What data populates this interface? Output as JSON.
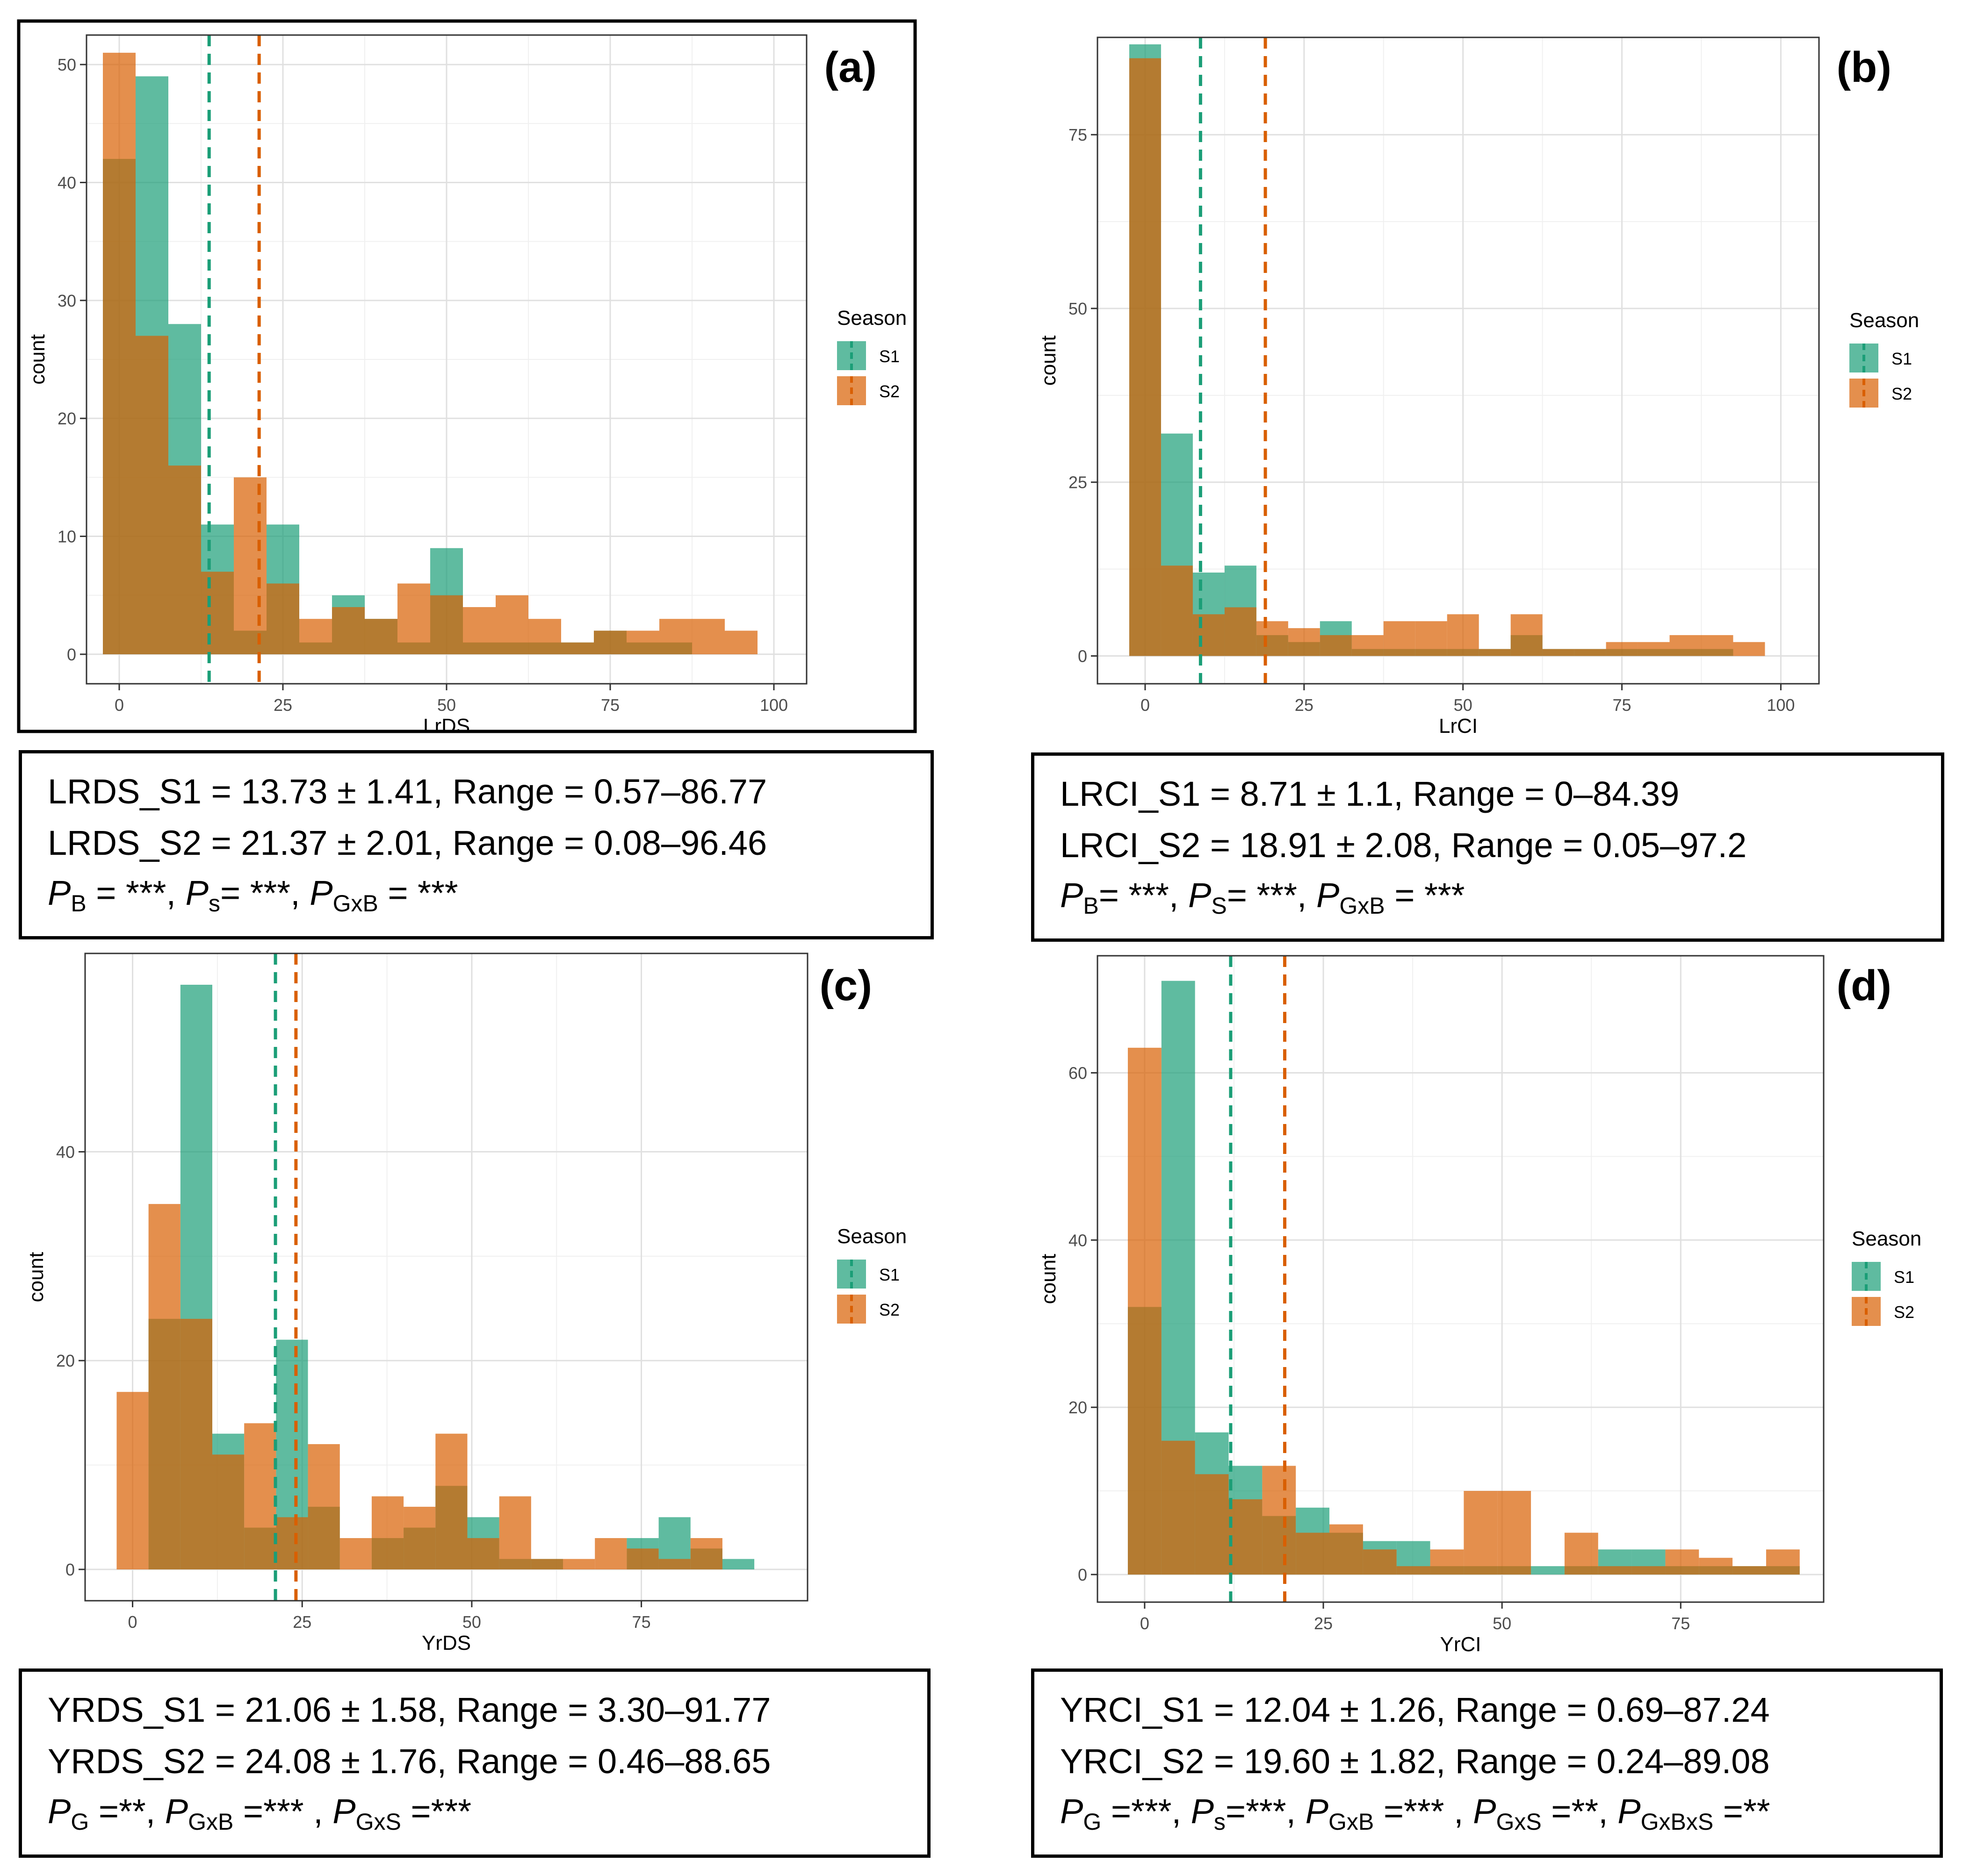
{
  "chart_data": [
    {
      "type": "bar",
      "panel_label": "(a)",
      "xlabel": "LrDS",
      "ylabel": "count",
      "xlim": [
        -5,
        105
      ],
      "ylim": [
        -2.5,
        52.5
      ],
      "xticks": [
        0,
        25,
        50,
        75,
        100
      ],
      "yticks": [
        0,
        10,
        20,
        30,
        40,
        50
      ],
      "bin_width": 5,
      "bin_starts": [
        -2.5,
        2.5,
        7.5,
        12.5,
        17.5,
        22.5,
        27.5,
        32.5,
        37.5,
        42.5,
        47.5,
        52.5,
        57.5,
        62.5,
        67.5,
        72.5,
        77.5,
        82.5,
        87.5,
        92.5
      ],
      "legend": {
        "title": "Season",
        "position": "right"
      },
      "series": [
        {
          "name": "S1",
          "color": "#1b9e77",
          "values": [
            42,
            49,
            28,
            11,
            2,
            11,
            1,
            5,
            3,
            1,
            9,
            1,
            1,
            1,
            1,
            2,
            1,
            1,
            0,
            0
          ],
          "mean": 13.73
        },
        {
          "name": "S2",
          "color": "#d95f02",
          "values": [
            51,
            27,
            16,
            7,
            15,
            6,
            3,
            4,
            3,
            6,
            5,
            4,
            5,
            3,
            1,
            2,
            2,
            3,
            3,
            2
          ],
          "mean": 21.37
        }
      ]
    },
    {
      "type": "bar",
      "panel_label": "(b)",
      "xlabel": "LrCI",
      "ylabel": "count",
      "xlim": [
        -7.5,
        106
      ],
      "ylim": [
        -4,
        89
      ],
      "xticks": [
        0,
        25,
        50,
        75,
        100
      ],
      "yticks": [
        0,
        25,
        50,
        75
      ],
      "bin_width": 5,
      "bin_starts": [
        -2.5,
        2.5,
        7.5,
        12.5,
        17.5,
        22.5,
        27.5,
        32.5,
        37.5,
        42.5,
        47.5,
        52.5,
        57.5,
        62.5,
        67.5,
        72.5,
        77.5,
        82.5,
        87.5,
        92.5
      ],
      "legend": {
        "title": "Season",
        "position": "right"
      },
      "series": [
        {
          "name": "S1",
          "color": "#1b9e77",
          "values": [
            88,
            32,
            12,
            13,
            3,
            2,
            5,
            1,
            1,
            1,
            1,
            1,
            3,
            1,
            1,
            1,
            1,
            1,
            1,
            0
          ],
          "mean": 8.71
        },
        {
          "name": "S2",
          "color": "#d95f02",
          "values": [
            86,
            13,
            6,
            7,
            5,
            4,
            3,
            3,
            5,
            5,
            6,
            1,
            6,
            1,
            1,
            2,
            2,
            3,
            3,
            2
          ],
          "mean": 18.91
        }
      ]
    },
    {
      "type": "bar",
      "panel_label": "(c)",
      "xlabel": "YrDS",
      "ylabel": "count",
      "xlim": [
        -7,
        99.5
      ],
      "ylim": [
        -3,
        59
      ],
      "xticks": [
        0,
        25,
        50,
        75
      ],
      "yticks": [
        0,
        20,
        40
      ],
      "bin_width": 4.7,
      "bin_starts": [
        -2.35,
        2.35,
        7.05,
        11.75,
        16.45,
        21.15,
        25.85,
        30.55,
        35.25,
        39.95,
        44.65,
        49.35,
        54.05,
        58.75,
        63.45,
        68.15,
        72.85,
        77.55,
        82.25,
        86.95
      ],
      "legend": {
        "title": "Season",
        "position": "right"
      },
      "series": [
        {
          "name": "S1",
          "color": "#1b9e77",
          "values": [
            0,
            24,
            56,
            13,
            4,
            22,
            6,
            0,
            3,
            4,
            8,
            5,
            1,
            1,
            0,
            0,
            3,
            5,
            2,
            1
          ],
          "mean": 21.06
        },
        {
          "name": "S2",
          "color": "#d95f02",
          "values": [
            17,
            35,
            24,
            11,
            14,
            5,
            12,
            3,
            7,
            6,
            13,
            3,
            7,
            1,
            1,
            3,
            2,
            1,
            3,
            0
          ],
          "mean": 24.08
        }
      ]
    },
    {
      "type": "bar",
      "panel_label": "(d)",
      "xlabel": "YrCI",
      "ylabel": "count",
      "xlim": [
        -6.6,
        95
      ],
      "ylim": [
        -3.3,
        74
      ],
      "xticks": [
        0,
        25,
        50,
        75
      ],
      "yticks": [
        0,
        20,
        40,
        60
      ],
      "bin_width": 4.7,
      "bin_starts": [
        -2.35,
        2.35,
        7.05,
        11.75,
        16.45,
        21.15,
        25.85,
        30.55,
        35.25,
        39.95,
        44.65,
        49.35,
        54.05,
        58.75,
        63.45,
        68.15,
        72.85,
        77.55,
        82.25,
        86.95
      ],
      "legend": {
        "title": "Season",
        "position": "right"
      },
      "series": [
        {
          "name": "S1",
          "color": "#1b9e77",
          "values": [
            32,
            71,
            17,
            13,
            7,
            8,
            5,
            4,
            4,
            1,
            1,
            1,
            1,
            1,
            3,
            3,
            1,
            1,
            1,
            1
          ],
          "mean": 12.04
        },
        {
          "name": "S2",
          "color": "#d95f02",
          "values": [
            63,
            16,
            12,
            9,
            13,
            5,
            6,
            3,
            1,
            3,
            10,
            10,
            0,
            5,
            1,
            1,
            3,
            2,
            1,
            3
          ],
          "mean": 19.6
        }
      ]
    }
  ],
  "stats": [
    {
      "line1": "LRDS_S1 = 13.73 ± 1.41, Range =  0.57–86.77",
      "line2": "LRDS_S2 = 21.37 ± 2.01, Range = 0.08–96.46",
      "p_terms": [
        {
          "sym": "P",
          "sub": "B",
          "val": " = ***"
        },
        {
          "sym": "P",
          "sub": "s",
          "val": "= ***"
        },
        {
          "sym": "P",
          "sub": "GxB",
          "val": " = ***"
        }
      ]
    },
    {
      "line1": "LRCI_S1 = 8.71 ± 1.1, Range = 0–84.39",
      "line2": "LRCI_S2 = 18.91 ± 2.08, Range = 0.05–97.2",
      "p_terms": [
        {
          "sym": "P",
          "sub": "B",
          "val": "= ***"
        },
        {
          "sym": "P",
          "sub": "S",
          "val": "= ***"
        },
        {
          "sym": "P",
          "sub": "GxB",
          "val": " = ***"
        }
      ]
    },
    {
      "line1": "YRDS_S1 = 21.06 ± 1.58, Range = 3.30–91.77",
      "line2": "YRDS_S2 = 24.08 ± 1.76, Range = 0.46–88.65",
      "p_terms": [
        {
          "sym": "P",
          "sub": "G",
          "val": " =**"
        },
        {
          "sym": "P",
          "sub": "GxB",
          "val": " =*** "
        },
        {
          "sym": "P",
          "sub": "GxS",
          "val": " =***"
        }
      ]
    },
    {
      "line1": "YRCI_S1 = 12.04 ± 1.26, Range = 0.69–87.24",
      "line2": "YRCI_S2 = 19.60 ± 1.82, Range = 0.24–89.08",
      "p_terms": [
        {
          "sym": "P",
          "sub": "G",
          "val": " =***"
        },
        {
          "sym": "P",
          "sub": "s",
          "val": "=***"
        },
        {
          "sym": "P",
          "sub": "GxB",
          "val": " =*** "
        },
        {
          "sym": "P",
          "sub": "GxS",
          "val": " =**"
        },
        {
          "sym": "P",
          "sub": "GxBxS",
          "val": " =**"
        }
      ]
    }
  ]
}
